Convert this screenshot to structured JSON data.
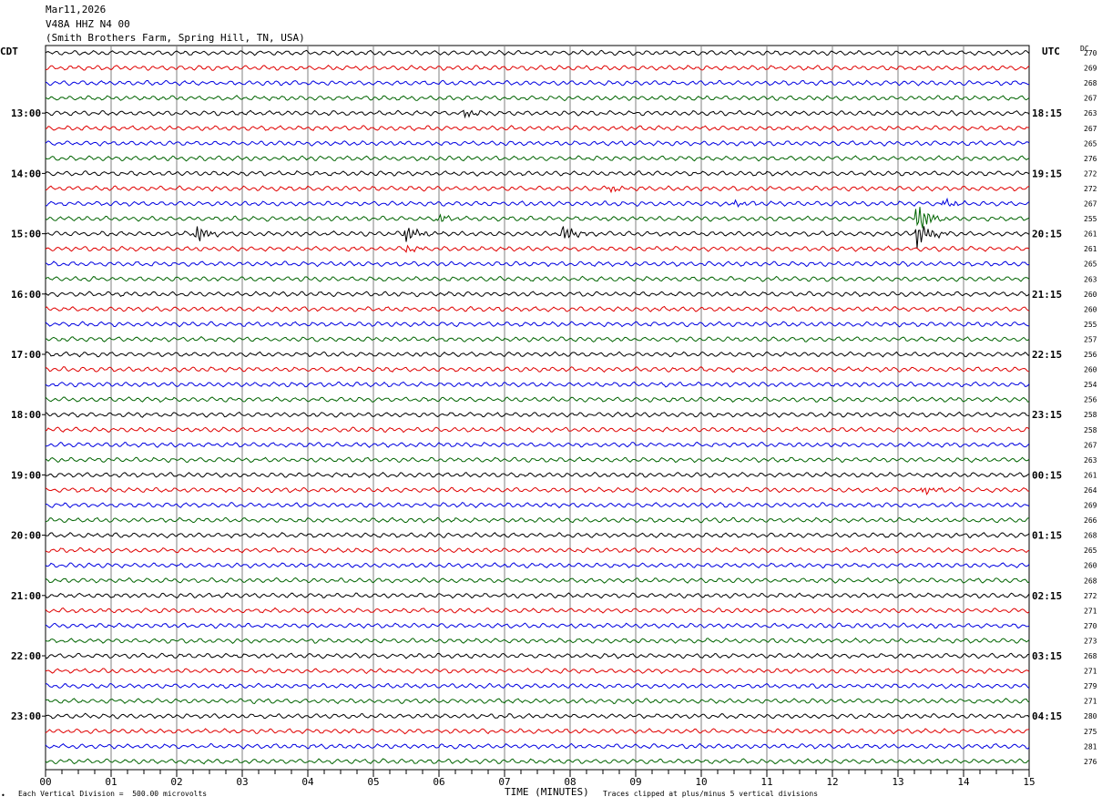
{
  "header": {
    "date": "Mar11,2026",
    "station": "V48A HHZ N4 00",
    "location": "(Smith Brothers Farm, Spring Hill, TN, USA)"
  },
  "left_tz": "CDT",
  "right_tz": "UTC",
  "dc_label": "DC",
  "footer": {
    "scale": "Each Vertical Division =  500.00 microvolts",
    "xlabel": "TIME (MINUTES)",
    "clip_note": "Traces clipped at plus/minus 5 vertical divisions",
    "corner_mark": "•"
  },
  "colors": {
    "trace_cycle": [
      "#000000",
      "#e00000",
      "#0000e0",
      "#006400"
    ],
    "grid": "#808080",
    "background": "#ffffff"
  },
  "chart_data": {
    "type": "line",
    "title": "",
    "xlabel": "TIME (MINUTES)",
    "xlim": [
      0,
      15
    ],
    "x_ticks": [
      "00",
      "01",
      "02",
      "03",
      "04",
      "05",
      "06",
      "07",
      "08",
      "09",
      "10",
      "11",
      "12",
      "13",
      "14",
      "15"
    ],
    "trace_count": 48,
    "left_hour_labels": [
      {
        "trace": 4,
        "label": "13:00"
      },
      {
        "trace": 8,
        "label": "14:00"
      },
      {
        "trace": 12,
        "label": "15:00"
      },
      {
        "trace": 16,
        "label": "16:00"
      },
      {
        "trace": 20,
        "label": "17:00"
      },
      {
        "trace": 24,
        "label": "18:00"
      },
      {
        "trace": 28,
        "label": "19:00"
      },
      {
        "trace": 32,
        "label": "20:00"
      },
      {
        "trace": 36,
        "label": "21:00"
      },
      {
        "trace": 40,
        "label": "22:00"
      },
      {
        "trace": 44,
        "label": "23:00"
      }
    ],
    "right_hour_labels": [
      {
        "trace": 4,
        "label": "18:15"
      },
      {
        "trace": 8,
        "label": "19:15"
      },
      {
        "trace": 12,
        "label": "20:15"
      },
      {
        "trace": 16,
        "label": "21:15"
      },
      {
        "trace": 20,
        "label": "22:15"
      },
      {
        "trace": 24,
        "label": "23:15"
      },
      {
        "trace": 28,
        "label": "00:15"
      },
      {
        "trace": 32,
        "label": "01:15"
      },
      {
        "trace": 36,
        "label": "02:15"
      },
      {
        "trace": 40,
        "label": "03:15"
      },
      {
        "trace": 44,
        "label": "04:15"
      }
    ],
    "dc_values": [
      "270",
      "269",
      "268",
      "267",
      "263",
      "267",
      "265",
      "276",
      "272",
      "272",
      "267",
      "255",
      "261",
      "261",
      "265",
      "263",
      "260",
      "260",
      "255",
      "257",
      "256",
      "260",
      "254",
      "256",
      "258",
      "258",
      "267",
      "263",
      "261",
      "264",
      "269",
      "266",
      "268",
      "265",
      "260",
      "268",
      "272",
      "271",
      "270",
      "273",
      "268",
      "271",
      "279",
      "271",
      "280",
      "275",
      "281",
      "276"
    ],
    "events": [
      {
        "trace": 11,
        "minute": 13.3,
        "amplitude": "large"
      },
      {
        "trace": 12,
        "minute": 13.3,
        "amplitude": "large"
      },
      {
        "trace": 12,
        "minute": 5.5,
        "amplitude": "medium"
      },
      {
        "trace": 12,
        "minute": 2.3,
        "amplitude": "medium"
      },
      {
        "trace": 12,
        "minute": 7.9,
        "amplitude": "medium"
      },
      {
        "trace": 10,
        "minute": 13.7,
        "amplitude": "small"
      },
      {
        "trace": 10,
        "minute": 10.5,
        "amplitude": "small"
      },
      {
        "trace": 9,
        "minute": 8.6,
        "amplitude": "small"
      },
      {
        "trace": 11,
        "minute": 6.0,
        "amplitude": "small"
      },
      {
        "trace": 4,
        "minute": 6.4,
        "amplitude": "small"
      },
      {
        "trace": 13,
        "minute": 5.5,
        "amplitude": "small"
      },
      {
        "trace": 29,
        "minute": 13.4,
        "amplitude": "small"
      }
    ]
  }
}
